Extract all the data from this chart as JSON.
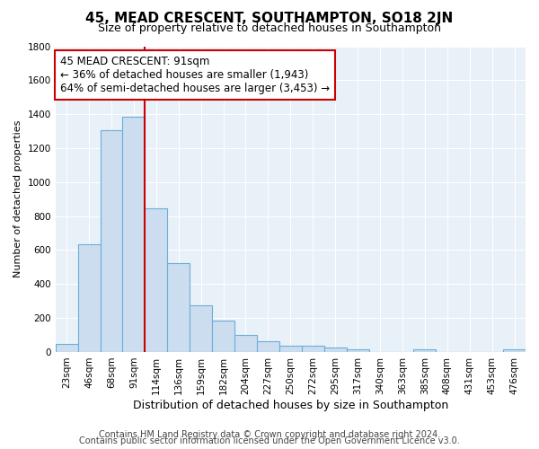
{
  "title": "45, MEAD CRESCENT, SOUTHAMPTON, SO18 2JN",
  "subtitle": "Size of property relative to detached houses in Southampton",
  "xlabel": "Distribution of detached houses by size in Southampton",
  "ylabel": "Number of detached properties",
  "bar_labels": [
    "23sqm",
    "46sqm",
    "68sqm",
    "91sqm",
    "114sqm",
    "136sqm",
    "159sqm",
    "182sqm",
    "204sqm",
    "227sqm",
    "250sqm",
    "272sqm",
    "295sqm",
    "317sqm",
    "340sqm",
    "363sqm",
    "385sqm",
    "408sqm",
    "431sqm",
    "453sqm",
    "476sqm"
  ],
  "bar_values": [
    50,
    635,
    1305,
    1385,
    848,
    525,
    275,
    185,
    100,
    65,
    35,
    35,
    28,
    18,
    0,
    0,
    18,
    0,
    0,
    0,
    15
  ],
  "bar_color": "#ccddf0",
  "bar_edge_color": "#6baed6",
  "vline_x_index": 3,
  "vline_color": "#cc0000",
  "ylim": [
    0,
    1800
  ],
  "yticks": [
    0,
    200,
    400,
    600,
    800,
    1000,
    1200,
    1400,
    1600,
    1800
  ],
  "annotation_line1": "45 MEAD CRESCENT: 91sqm",
  "annotation_line2": "← 36% of detached houses are smaller (1,943)",
  "annotation_line3": "64% of semi-detached houses are larger (3,453) →",
  "annotation_box_facecolor": "#ffffff",
  "annotation_box_edgecolor": "#cc0000",
  "footer_line1": "Contains HM Land Registry data © Crown copyright and database right 2024.",
  "footer_line2": "Contains public sector information licensed under the Open Government Licence v3.0.",
  "fig_facecolor": "#ffffff",
  "plot_facecolor": "#e8f0f8",
  "grid_color": "#ffffff",
  "title_fontsize": 11,
  "subtitle_fontsize": 9,
  "ylabel_fontsize": 8,
  "xlabel_fontsize": 9,
  "tick_fontsize": 7.5,
  "annotation_fontsize": 8.5,
  "footer_fontsize": 7
}
